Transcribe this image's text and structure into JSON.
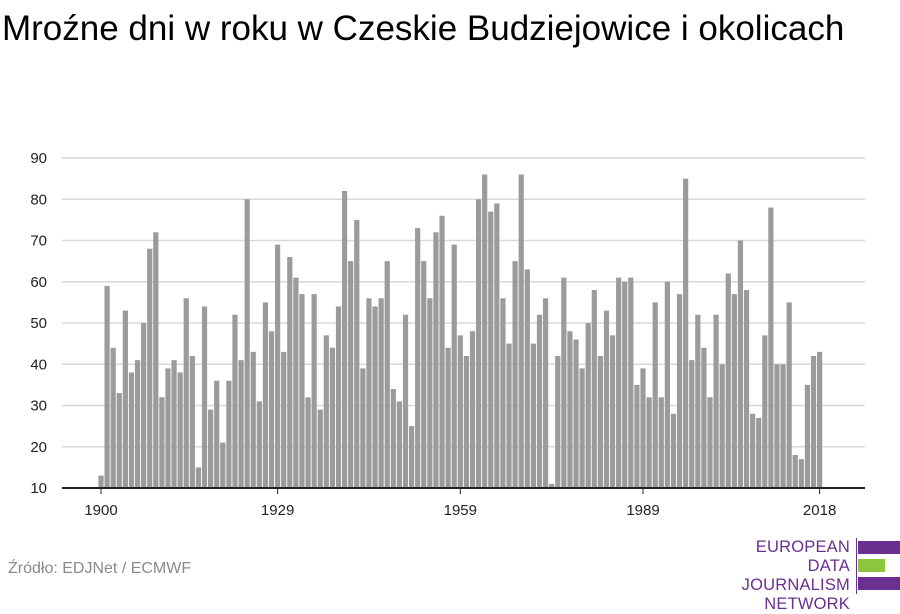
{
  "title": "Mroźne dni w roku w Czeskie Budziejowice i okolicach",
  "source": "Źródło: EDJNet / ECMWF",
  "logo": {
    "lines": [
      "EUROPEAN",
      "DATA JOURNALISM",
      "NETWORK"
    ],
    "colors": {
      "purple": "#6b2f8f",
      "green": "#8cc63f"
    }
  },
  "colors": {
    "bar": "#9b9b9b",
    "grid": "#d9d9d9",
    "axis": "#222222"
  },
  "chart_data": {
    "type": "bar",
    "x_start": 1900,
    "x_end": 2019,
    "x_ticks": [
      1900,
      1929,
      1959,
      1989,
      2018
    ],
    "y_ticks": [
      10,
      20,
      30,
      40,
      50,
      60,
      70,
      80,
      90
    ],
    "ylim": [
      10,
      90
    ],
    "grid": true,
    "values": [
      13,
      59,
      44,
      33,
      53,
      38,
      41,
      50,
      68,
      72,
      32,
      39,
      41,
      38,
      56,
      42,
      15,
      54,
      29,
      36,
      21,
      36,
      52,
      41,
      80,
      43,
      31,
      55,
      48,
      69,
      43,
      66,
      61,
      57,
      32,
      57,
      29,
      47,
      44,
      54,
      82,
      65,
      75,
      39,
      56,
      54,
      56,
      65,
      34,
      31,
      52,
      25,
      73,
      65,
      56,
      72,
      76,
      44,
      69,
      47,
      42,
      48,
      80,
      86,
      77,
      79,
      56,
      45,
      65,
      86,
      63,
      45,
      52,
      56,
      11,
      42,
      61,
      48,
      46,
      39,
      50,
      58,
      42,
      53,
      47,
      61,
      60,
      61,
      35,
      39,
      32,
      55,
      32,
      60,
      28,
      57,
      85,
      41,
      52,
      44,
      32,
      52,
      40,
      62,
      57,
      70,
      58,
      28,
      27,
      47,
      78,
      40,
      40,
      55,
      18,
      17,
      35,
      42,
      43
    ]
  }
}
